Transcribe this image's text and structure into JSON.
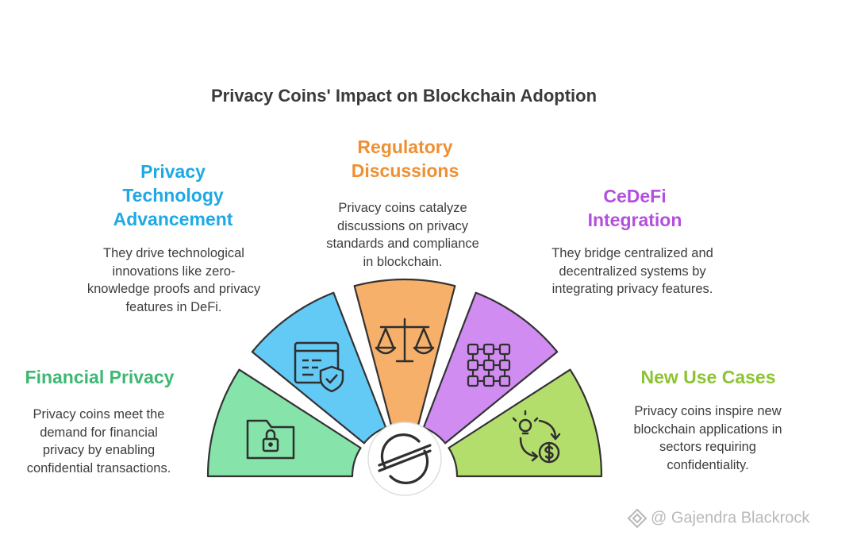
{
  "title": "Privacy Coins' Impact on Blockchain Adoption",
  "segments": [
    {
      "id": "financial-privacy",
      "heading": "Financial Privacy",
      "description": "Privacy coins meet the demand for financial privacy by enabling confidential transactions.",
      "color": "#86e3a9",
      "text_color": "#3db873",
      "icon": "locked-folder-icon"
    },
    {
      "id": "privacy-technology",
      "heading": "Privacy Technology Advancement",
      "description": "They drive technological innovations like zero-knowledge proofs and privacy features in DeFi.",
      "color": "#63c9f5",
      "text_color": "#1ea9e6",
      "icon": "shield-document-icon"
    },
    {
      "id": "regulatory",
      "heading": "Regulatory Discussions",
      "description": "Privacy coins catalyze discussions on privacy standards and compliance in blockchain.",
      "color": "#f7b06a",
      "text_color": "#ef8f34",
      "icon": "scales-icon"
    },
    {
      "id": "cedefi",
      "heading": "CeDeFi Integration",
      "description": "They bridge centralized and decentralized systems by integrating privacy features.",
      "color": "#d08cf0",
      "text_color": "#b34fe0",
      "icon": "network-grid-icon"
    },
    {
      "id": "new-use-cases",
      "heading": "New Use Cases",
      "description": "Privacy coins inspire new blockchain applications in sectors requiring confidentiality.",
      "color": "#b4de6c",
      "text_color": "#8dc433",
      "icon": "idea-money-cycle-icon"
    }
  ],
  "center_icon": "stellar-logo-icon",
  "watermark": "@ Gajendra Blackrock"
}
